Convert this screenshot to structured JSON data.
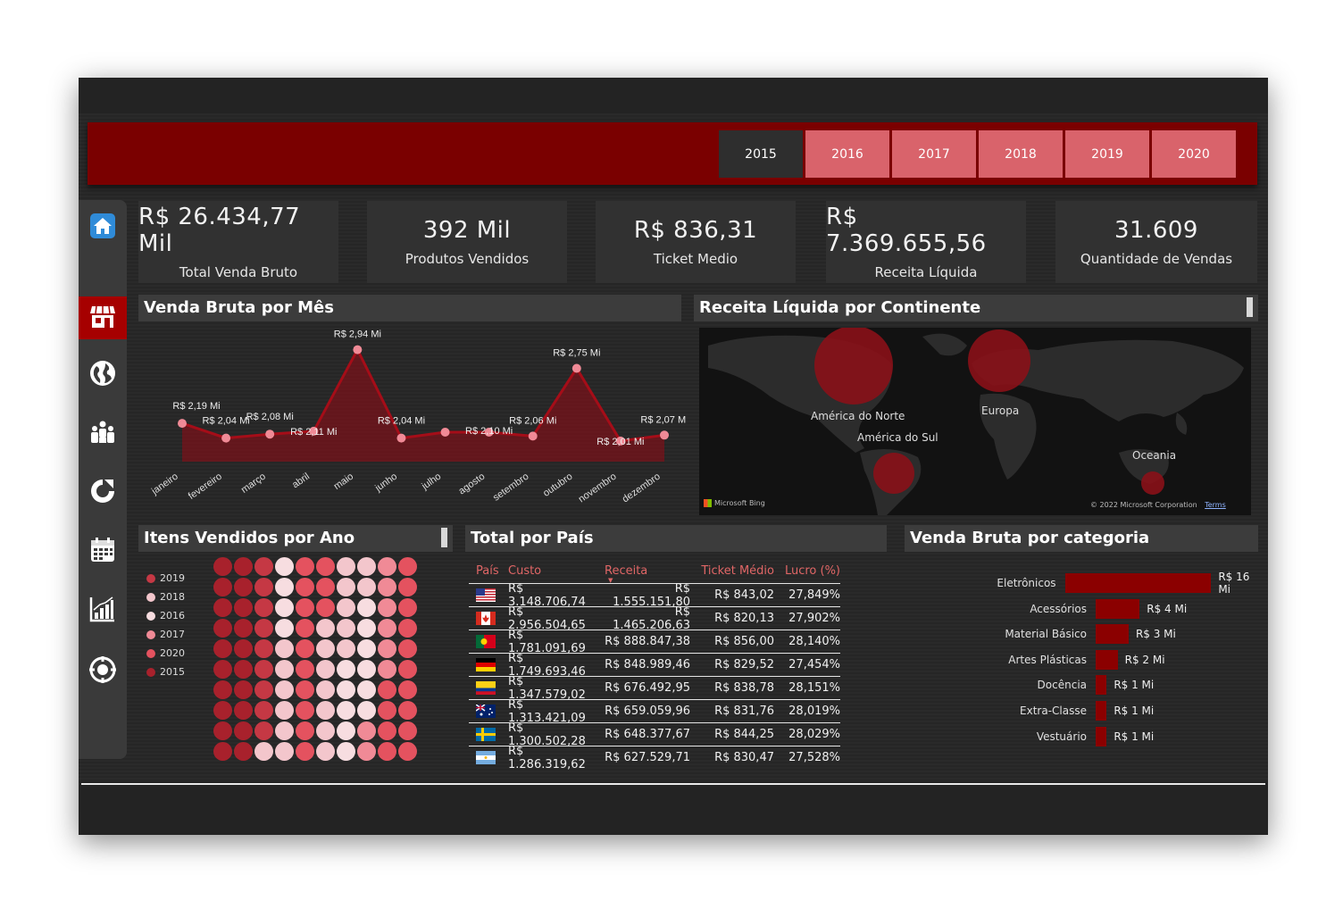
{
  "colors": {
    "accent": "#7a0000",
    "year_btn": "#d9636b",
    "year_active": "#2e2e2e",
    "bar": "#8b0000",
    "header_red": "#e06666"
  },
  "years": [
    {
      "label": "2015",
      "active": true
    },
    {
      "label": "2016",
      "active": false
    },
    {
      "label": "2017",
      "active": false
    },
    {
      "label": "2018",
      "active": false
    },
    {
      "label": "2019",
      "active": false
    },
    {
      "label": "2020",
      "active": false
    }
  ],
  "sidebar": {
    "icons": [
      "home-icon",
      "store-icon",
      "globe-icon",
      "people-icon",
      "refresh-icon",
      "calendar-icon",
      "bar-chart-icon",
      "settings-target-icon"
    ],
    "active": "store-icon"
  },
  "kpis": [
    {
      "value": "R$ 26.434,77 Mil",
      "label": "Total Venda Bruto"
    },
    {
      "value": "392 Mil",
      "label": "Produtos Vendidos"
    },
    {
      "value": "R$ 836,31",
      "label": "Ticket Medio"
    },
    {
      "value": "R$ 7.369.655,56",
      "label": "Receita Líquida"
    },
    {
      "value": "31.609",
      "label": "Quantidade de Vendas"
    }
  ],
  "titles": {
    "monthly": "Venda Bruta por Mês",
    "continent": "Receita Líquida por Continente",
    "items_year": "Itens Vendidos por Ano",
    "country": "Total  por País",
    "category": "Venda Bruta por categoria"
  },
  "chart_data": [
    {
      "type": "area",
      "title": "Venda Bruta por Mês",
      "categories": [
        "janeiro",
        "fevereiro",
        "março",
        "abril",
        "maio",
        "junho",
        "julho",
        "agosto",
        "setembro",
        "outubro",
        "novembro",
        "dezembro"
      ],
      "values": [
        2.19,
        2.04,
        2.08,
        2.11,
        2.94,
        2.04,
        2.1,
        2.1,
        2.06,
        2.75,
        2.01,
        2.07
      ],
      "labels": [
        "R$ 2,19 Mi",
        "R$ 2,04 Mi",
        "R$ 2,08 Mi",
        "R$ 2,11 Mi",
        "R$ 2,94 Mi",
        "R$ 2,04 Mi",
        "",
        "R$ 2,10 Mi",
        "R$ 2,06 Mi",
        "R$ 2,75 Mi",
        "R$ 2,01 Mi",
        "R$ 2,07 Mi"
      ],
      "ylim": [
        1.8,
        3.0
      ]
    },
    {
      "type": "bar",
      "title": "Venda Bruta por categoria",
      "categories": [
        "Eletrônicos",
        "Acessórios",
        "Material Básico",
        "Artes Plásticas",
        "Docência",
        "Extra-Classe",
        "Vestuário"
      ],
      "values": [
        16,
        4,
        3,
        2,
        1,
        1,
        1
      ],
      "labels": [
        "R$ 16 Mi",
        "R$ 4 Mi",
        "R$ 3 Mi",
        "R$ 2 Mi",
        "R$ 1 Mi",
        "R$ 1 Mi",
        "R$ 1 Mi"
      ]
    }
  ],
  "map": {
    "labels": [
      "América do Norte",
      "América do Sul",
      "Europa",
      "Oceania"
    ],
    "bing": "Microsoft Bing",
    "copyright": "© 2022 Microsoft Corporation",
    "terms": "Terms"
  },
  "waffle": {
    "legend": [
      {
        "label": "2019",
        "color": "#c53844"
      },
      {
        "label": "2018",
        "color": "#f3c6cc"
      },
      {
        "label": "2016",
        "color": "#f7dde0"
      },
      {
        "label": "2017",
        "color": "#f08a96"
      },
      {
        "label": "2020",
        "color": "#e4525f"
      },
      {
        "label": "2015",
        "color": "#a8212c"
      }
    ]
  },
  "country_table": {
    "headers": [
      "País",
      "Custo",
      "Receita",
      "Ticket Médio",
      "Lucro (%)"
    ],
    "rows": [
      {
        "flag": "usa-flag",
        "custo": "R$ 3.148.706,74",
        "receita": "R$ 1.555.151,80",
        "ticket": "R$ 843,02",
        "lucro": "27,849%"
      },
      {
        "flag": "canada-flag",
        "custo": "R$ 2.956.504,65",
        "receita": "R$ 1.465.206,63",
        "ticket": "R$ 820,13",
        "lucro": "27,902%"
      },
      {
        "flag": "portugal-flag",
        "custo": "R$ 1.781.091,69",
        "receita": "R$ 888.847,38",
        "ticket": "R$ 856,00",
        "lucro": "28,140%"
      },
      {
        "flag": "germany-flag",
        "custo": "R$ 1.749.693,46",
        "receita": "R$ 848.989,46",
        "ticket": "R$ 829,52",
        "lucro": "27,454%"
      },
      {
        "flag": "colombia-flag",
        "custo": "R$ 1.347.579,02",
        "receita": "R$ 676.492,95",
        "ticket": "R$ 838,78",
        "lucro": "28,151%"
      },
      {
        "flag": "australia-flag",
        "custo": "R$ 1.313.421,09",
        "receita": "R$ 659.059,96",
        "ticket": "R$ 831,76",
        "lucro": "28,019%"
      },
      {
        "flag": "sweden-flag",
        "custo": "R$ 1.300.502,28",
        "receita": "R$ 648.377,67",
        "ticket": "R$ 844,25",
        "lucro": "28,029%"
      },
      {
        "flag": "argentina-flag",
        "custo": "R$ 1.286.319,62",
        "receita": "R$ 627.529,71",
        "ticket": "R$ 830,47",
        "lucro": "27,528%"
      }
    ]
  }
}
